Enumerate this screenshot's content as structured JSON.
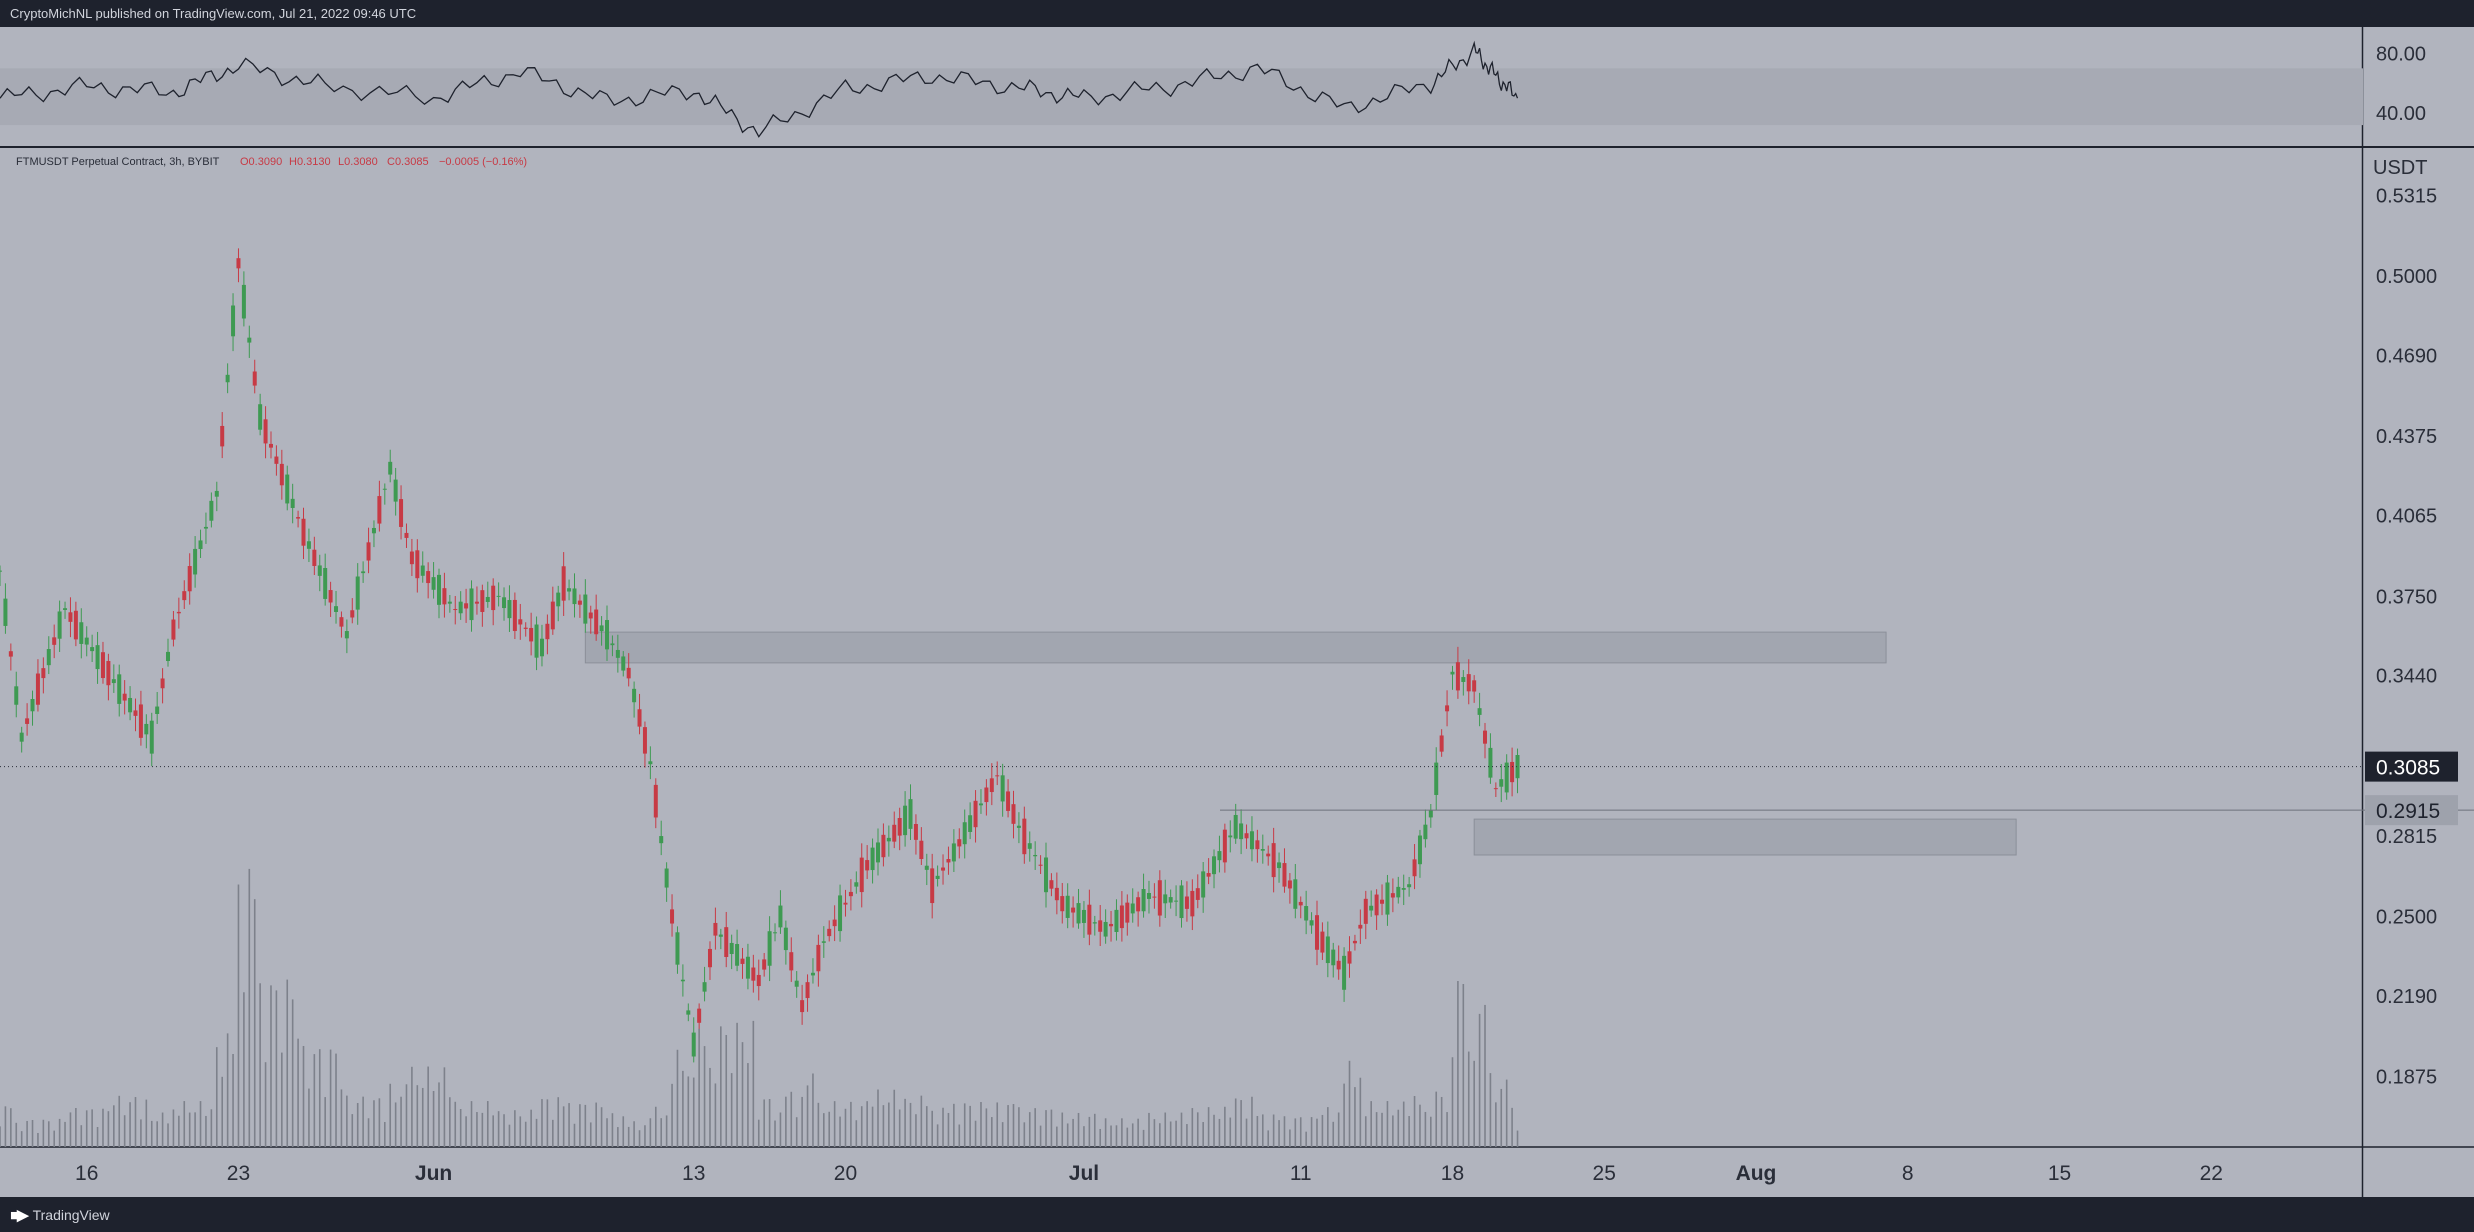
{
  "header": {
    "published_text": "CryptoMichNL published on TradingView.com, Jul 21, 2022 09:46 UTC"
  },
  "footer": {
    "brand": "TradingView"
  },
  "colors": {
    "background": "#b1b4be",
    "frame": "#1e222d",
    "up": "#3e9a52",
    "down": "#c73a45",
    "text": "#2a2e39",
    "zone": "#9da1ab"
  },
  "chart_data": [
    {
      "type": "line",
      "panel": "oscillator",
      "y_ticks": [
        "80.00",
        "40.00"
      ],
      "ylim": [
        20,
        95
      ],
      "band": [
        32,
        70
      ],
      "x": [
        "May 12",
        "May 16",
        "May 20",
        "May 23",
        "May 27",
        "Jun 1",
        "Jun 5",
        "Jun 9",
        "Jun 13",
        "Jun 16",
        "Jun 20",
        "Jun 24",
        "Jun 28",
        "Jul 1",
        "Jul 5",
        "Jul 9",
        "Jul 13",
        "Jul 17",
        "Jul 19",
        "Jul 20",
        "Jul 21"
      ],
      "values": [
        50,
        58,
        54,
        72,
        58,
        50,
        68,
        48,
        55,
        27,
        56,
        65,
        57,
        50,
        58,
        70,
        43,
        60,
        82,
        65,
        50
      ]
    },
    {
      "type": "candlestick",
      "panel": "price",
      "legend": {
        "symbol": "FTMUSDT Perpetual Contract, 3h, BYBIT",
        "open": "O0.3090",
        "high": "H0.3130",
        "low": "L0.3080",
        "close": "C0.3085",
        "change": "−0.0005 (−0.16%)"
      },
      "unit": "USDT",
      "y_ticks": [
        "0.5315",
        "0.5000",
        "0.4690",
        "0.4375",
        "0.4065",
        "0.3750",
        "0.3440",
        "0.2815",
        "0.2500",
        "0.2190",
        "0.1875"
      ],
      "x_ticks": [
        "16",
        "23",
        "Jun",
        "13",
        "20",
        "Jul",
        "11",
        "18",
        "25",
        "Aug",
        "8",
        "15",
        "22"
      ],
      "bold_x_ticks": [
        "Jun",
        "Jul",
        "Aug"
      ],
      "ylim": [
        0.16,
        0.55
      ],
      "last_price": "0.3085",
      "marker_price": "0.2915",
      "zones": [
        {
          "from": "Jun 8",
          "to": "Aug 7",
          "low": 0.349,
          "high": 0.361
        },
        {
          "from": "Jul 19",
          "to": "Aug 13",
          "low": 0.274,
          "high": 0.288
        }
      ],
      "x": [
        "May 12",
        "May 13",
        "May 15",
        "May 17",
        "May 19",
        "May 20",
        "May 22",
        "May 23",
        "May 24",
        "May 26",
        "May 28",
        "May 30",
        "May 31",
        "Jun 2",
        "Jun 4",
        "Jun 6",
        "Jun 7",
        "Jun 9",
        "Jun 10",
        "Jun 11",
        "Jun 12",
        "Jun 13",
        "Jun 14",
        "Jun 16",
        "Jun 17",
        "Jun 18",
        "Jun 19",
        "Jun 21",
        "Jun 23",
        "Jun 24",
        "Jun 25",
        "Jun 27",
        "Jun 28",
        "Jun 30",
        "Jul 2",
        "Jul 4",
        "Jul 6",
        "Jul 8",
        "Jul 9",
        "Jul 10",
        "Jul 12",
        "Jul 13",
        "Jul 14",
        "Jul 16",
        "Jul 17",
        "Jul 18",
        "Jul 19",
        "Jul 20",
        "Jul 21"
      ],
      "close": [
        0.385,
        0.32,
        0.37,
        0.345,
        0.32,
        0.362,
        0.415,
        0.505,
        0.445,
        0.4,
        0.36,
        0.425,
        0.39,
        0.37,
        0.375,
        0.355,
        0.38,
        0.36,
        0.345,
        0.31,
        0.25,
        0.2,
        0.245,
        0.225,
        0.25,
        0.215,
        0.24,
        0.27,
        0.29,
        0.262,
        0.275,
        0.305,
        0.285,
        0.255,
        0.245,
        0.258,
        0.255,
        0.285,
        0.278,
        0.27,
        0.24,
        0.228,
        0.252,
        0.262,
        0.29,
        0.345,
        0.34,
        0.3,
        0.3085
      ],
      "volume": [
        15,
        10,
        14,
        18,
        12,
        16,
        40,
        100,
        60,
        36,
        18,
        22,
        28,
        16,
        13,
        18,
        16,
        12,
        9,
        14,
        34,
        42,
        44,
        18,
        20,
        26,
        16,
        20,
        18,
        14,
        16,
        16,
        14,
        12,
        10,
        12,
        14,
        18,
        12,
        11,
        14,
        30,
        16,
        18,
        20,
        62,
        52,
        24,
        8
      ]
    }
  ]
}
